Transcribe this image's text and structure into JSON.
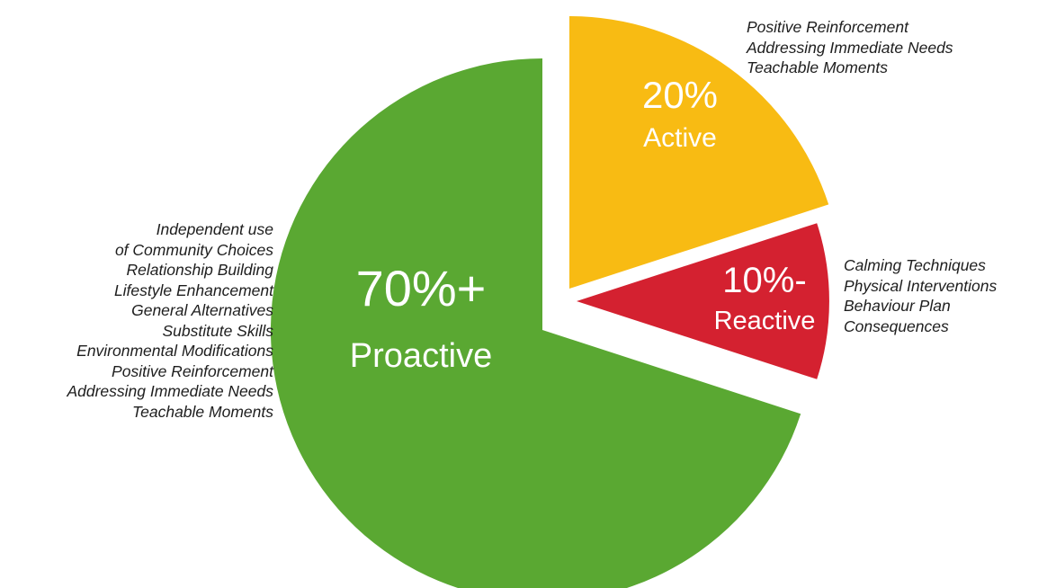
{
  "chart_data": {
    "type": "pie",
    "title": "",
    "exploded": true,
    "slices": [
      {
        "key": "proactive",
        "value": 70,
        "percent_label": "70%+",
        "category_label": "Proactive",
        "color": "#5aa832",
        "notes": [
          "Independent use",
          "of Community Choices",
          "Relationship Building",
          "Lifestyle Enhancement",
          "General Alternatives",
          "Substitute Skills",
          "Environmental Modifications",
          "Positive Reinforcement",
          "Addressing Immediate Needs",
          "Teachable Moments"
        ]
      },
      {
        "key": "active",
        "value": 20,
        "percent_label": "20%",
        "category_label": "Active",
        "color": "#f8bb13",
        "notes": [
          "Positive Reinforcement",
          "Addressing Immediate Needs",
          "Teachable Moments"
        ]
      },
      {
        "key": "reactive",
        "value": 10,
        "percent_label": "10%-",
        "category_label": "Reactive",
        "color": "#d42130",
        "notes": [
          "Calming Techniques",
          "Physical Interventions",
          "Behaviour Plan",
          "Consequences"
        ]
      }
    ]
  }
}
